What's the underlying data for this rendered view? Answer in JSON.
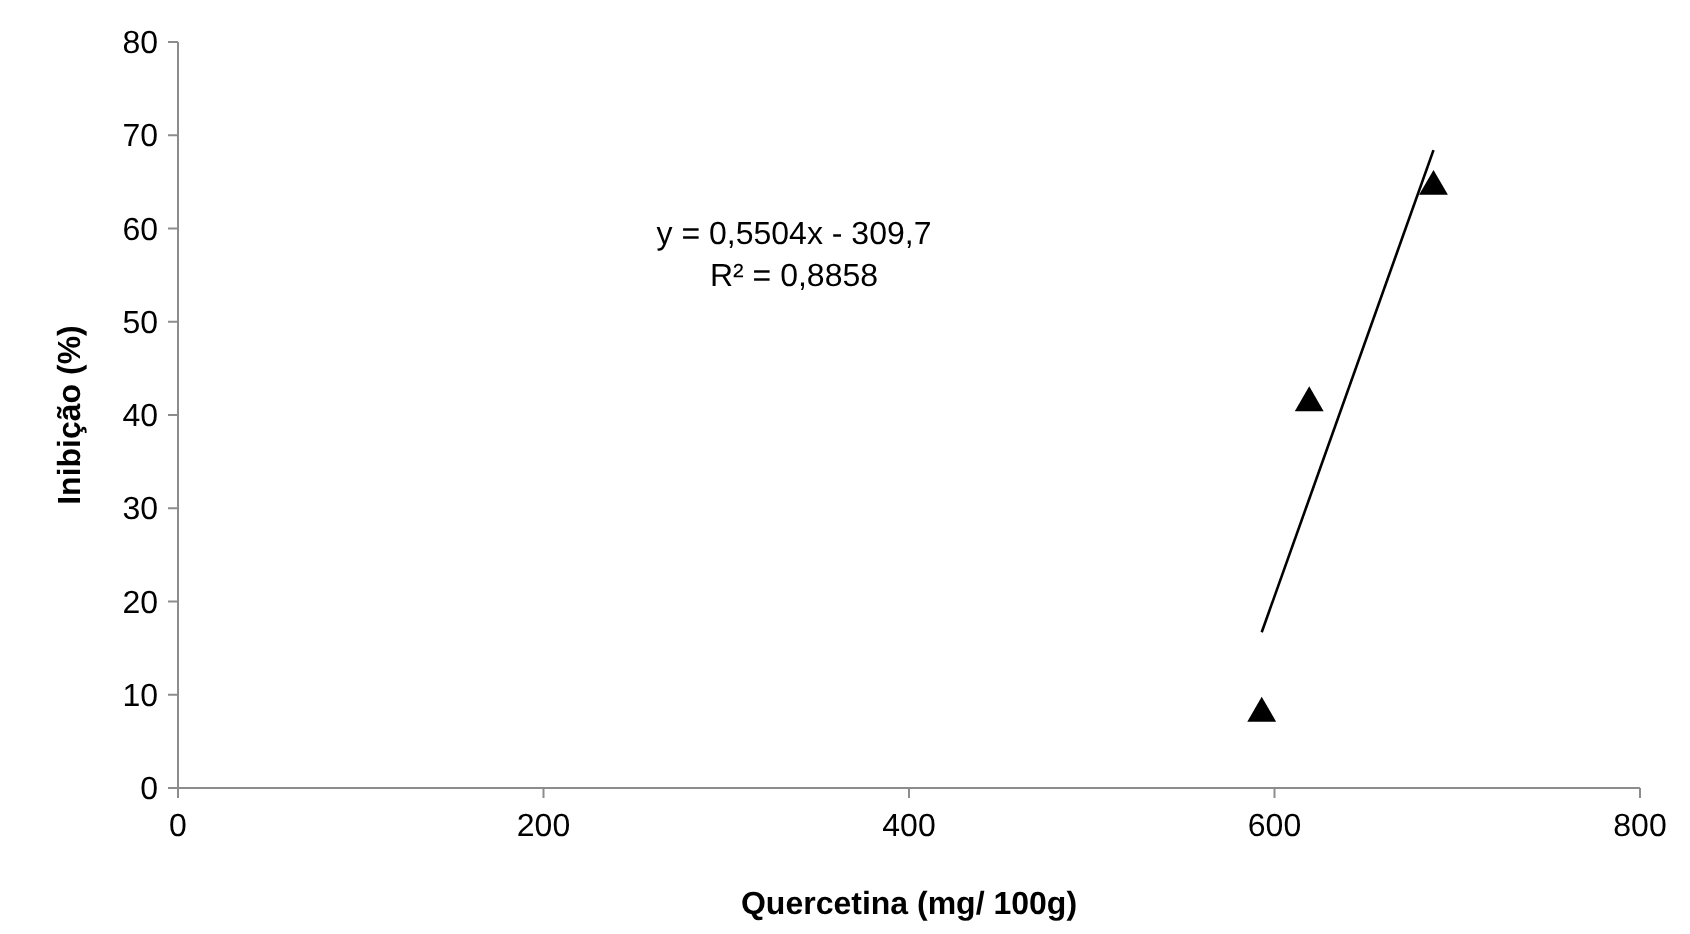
{
  "chart_data": {
    "type": "scatter",
    "xlabel": "Quercetina (mg/ 100g)",
    "ylabel": "Inibição (%)",
    "xlim": [
      0,
      800
    ],
    "xticks": [
      0,
      200,
      400,
      600,
      800
    ],
    "ylim": [
      0,
      80
    ],
    "yticks": [
      0,
      10,
      20,
      30,
      40,
      50,
      60,
      70,
      80
    ],
    "grid": false,
    "marker": "triangle",
    "series": [
      {
        "color": "#000000",
        "x": [
          593,
          619,
          687
        ],
        "values": [
          8,
          41.3,
          64.5
        ]
      },
      {
        "type": "line",
        "color": "#000000",
        "x": [
          593,
          687
        ],
        "values": [
          16.7,
          68.4
        ],
        "marker": "none",
        "line_style": "solid"
      }
    ],
    "annotations": [
      "y = 0,5504x - 309,7",
      "R² = 0,8858"
    ]
  }
}
